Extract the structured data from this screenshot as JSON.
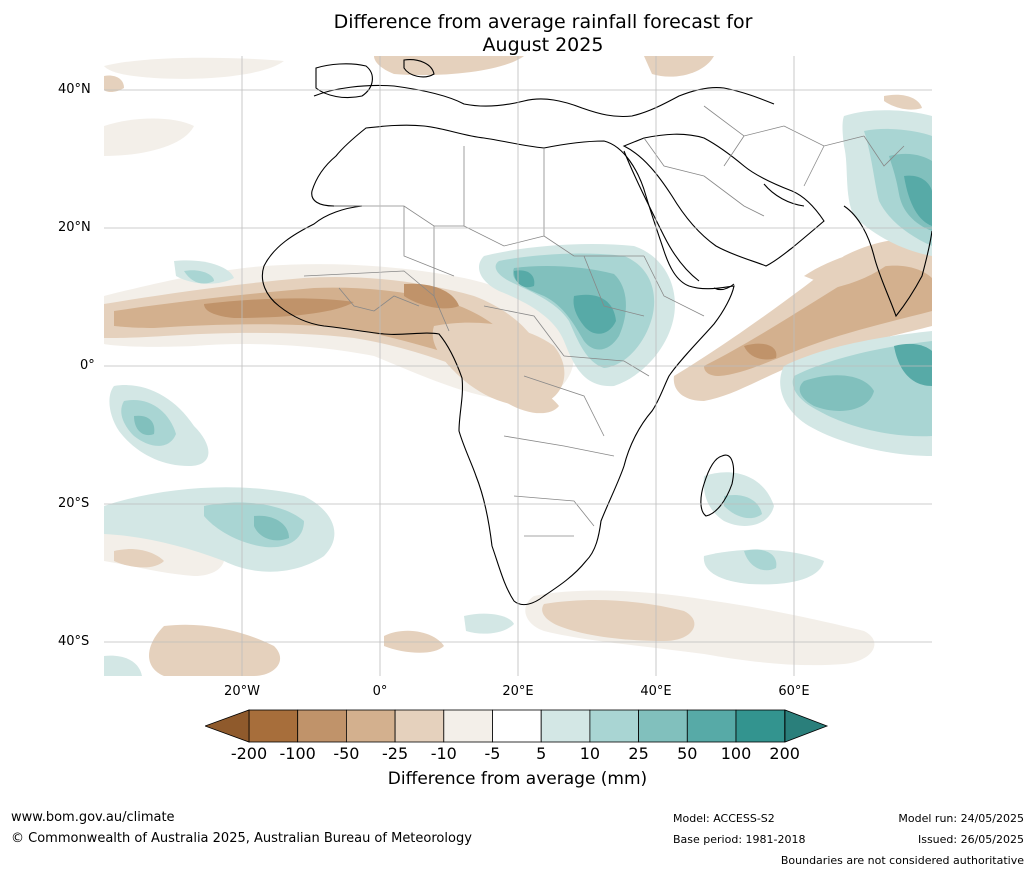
{
  "title_lines": [
    "Difference from average rainfall forecast for",
    "August 2025"
  ],
  "map": {
    "region": "Africa",
    "lat_labels": [
      "40°N",
      "20°N",
      "0°",
      "20°S",
      "40°S"
    ],
    "lon_labels": [
      "20°W",
      "0°",
      "20°E",
      "40°E",
      "60°E"
    ]
  },
  "colorbar": {
    "ticks": [
      "-200",
      "-100",
      "-50",
      "-25",
      "-10",
      "-5",
      "5",
      "10",
      "25",
      "50",
      "100",
      "200"
    ],
    "colors": [
      "#a76e3b",
      "#c0936a",
      "#d3b08e",
      "#e5d1bd",
      "#f3efe9",
      "#ffffff",
      "#d3e7e5",
      "#a9d5d3",
      "#81c0bd",
      "#57aaa7",
      "#33948f"
    ],
    "low_extend_color": "#8f5a2c",
    "high_extend_color": "#2a7f7b",
    "label": "Difference from average (mm)"
  },
  "footer": {
    "website": "www.bom.gov.au/climate",
    "copyright": "© Commonwealth of Australia 2025, Australian Bureau of Meteorology",
    "model": "Model: ACCESS-S2",
    "base_period": "Base period: 1981-2018",
    "model_run": "Model run: 24/05/2025",
    "issued": "Issued: 26/05/2025",
    "disclaimer": "Boundaries are not considered authoritative"
  }
}
